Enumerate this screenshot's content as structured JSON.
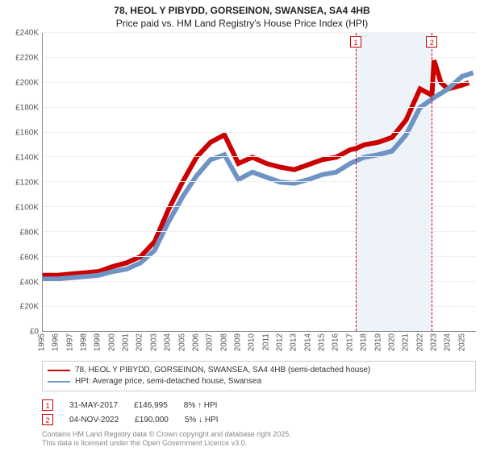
{
  "title": {
    "line1": "78, HEOL Y PIBYDD, GORSEINON, SWANSEA, SA4 4HB",
    "line2": "Price paid vs. HM Land Registry's House Price Index (HPI)"
  },
  "chart": {
    "type": "line",
    "background_color": "#ffffff",
    "grid_color": "#f0f0f0",
    "axis_color": "#888888",
    "marker_band_color": "#eef3fa",
    "ylim": [
      0,
      240000
    ],
    "ytick_step": 20000,
    "yticks_labels": [
      "£0",
      "£20K",
      "£40K",
      "£60K",
      "£80K",
      "£100K",
      "£120K",
      "£140K",
      "£160K",
      "£180K",
      "£200K",
      "£220K",
      "£240K"
    ],
    "xlim": [
      1995,
      2026
    ],
    "xticks": [
      1995,
      1996,
      1997,
      1998,
      1999,
      2000,
      2001,
      2002,
      2003,
      2004,
      2005,
      2006,
      2007,
      2008,
      2009,
      2010,
      2011,
      2012,
      2013,
      2014,
      2015,
      2016,
      2017,
      2018,
      2019,
      2020,
      2021,
      2022,
      2023,
      2024,
      2025
    ],
    "label_fontsize": 10,
    "series": [
      {
        "id": "price_paid",
        "label": "78, HEOL Y PIBYDD, GORSEINON, SWANSEA, SA4 4HB (semi-detached house)",
        "color": "#cc0000",
        "line_width": 2,
        "data": [
          [
            1995,
            45000
          ],
          [
            1996,
            45000
          ],
          [
            1997,
            46000
          ],
          [
            1998,
            47000
          ],
          [
            1999,
            48000
          ],
          [
            2000,
            52000
          ],
          [
            2001,
            55000
          ],
          [
            2002,
            60000
          ],
          [
            2003,
            72000
          ],
          [
            2004,
            98000
          ],
          [
            2005,
            120000
          ],
          [
            2006,
            140000
          ],
          [
            2007,
            152000
          ],
          [
            2008,
            158000
          ],
          [
            2009,
            135000
          ],
          [
            2010,
            140000
          ],
          [
            2011,
            135000
          ],
          [
            2012,
            132000
          ],
          [
            2013,
            130000
          ],
          [
            2014,
            134000
          ],
          [
            2015,
            138000
          ],
          [
            2016,
            140000
          ],
          [
            2017,
            146000
          ],
          [
            2017.4,
            146995
          ],
          [
            2018,
            150000
          ],
          [
            2019,
            152000
          ],
          [
            2020,
            156000
          ],
          [
            2021,
            170000
          ],
          [
            2022,
            195000
          ],
          [
            2022.85,
            190000
          ],
          [
            2023,
            218000
          ],
          [
            2023.5,
            200000
          ],
          [
            2024,
            195000
          ],
          [
            2025,
            198000
          ],
          [
            2025.5,
            200000
          ]
        ]
      },
      {
        "id": "hpi",
        "label": "HPI: Average price, semi-detached house, Swansea",
        "color": "#6f94c4",
        "line_width": 2,
        "data": [
          [
            1995,
            42000
          ],
          [
            1996,
            42000
          ],
          [
            1997,
            43000
          ],
          [
            1998,
            44000
          ],
          [
            1999,
            45000
          ],
          [
            2000,
            48000
          ],
          [
            2001,
            50000
          ],
          [
            2002,
            55000
          ],
          [
            2003,
            65000
          ],
          [
            2004,
            88000
          ],
          [
            2005,
            108000
          ],
          [
            2006,
            125000
          ],
          [
            2007,
            138000
          ],
          [
            2008,
            142000
          ],
          [
            2009,
            122000
          ],
          [
            2010,
            128000
          ],
          [
            2011,
            124000
          ],
          [
            2012,
            120000
          ],
          [
            2013,
            119000
          ],
          [
            2014,
            122000
          ],
          [
            2015,
            126000
          ],
          [
            2016,
            128000
          ],
          [
            2017,
            135000
          ],
          [
            2018,
            140000
          ],
          [
            2019,
            142000
          ],
          [
            2020,
            145000
          ],
          [
            2021,
            158000
          ],
          [
            2022,
            180000
          ],
          [
            2023,
            188000
          ],
          [
            2024,
            195000
          ],
          [
            2025,
            205000
          ],
          [
            2025.8,
            208000
          ]
        ]
      }
    ],
    "markers": [
      {
        "n": 1,
        "x": 2017.4,
        "color": "#cc0000"
      },
      {
        "n": 2,
        "x": 2022.85,
        "color": "#cc0000"
      }
    ],
    "marker_band": [
      2017.4,
      2022.85
    ]
  },
  "legend": {
    "border_color": "#cccccc"
  },
  "sales": [
    {
      "n": 1,
      "date": "31-MAY-2017",
      "price": "£146,995",
      "delta": "8% ↑ HPI",
      "color": "#cc0000"
    },
    {
      "n": 2,
      "date": "04-NOV-2022",
      "price": "£190,000",
      "delta": "5% ↓ HPI",
      "color": "#cc0000"
    }
  ],
  "footer": {
    "line1": "Contains HM Land Registry data © Crown copyright and database right 2025.",
    "line2": "This data is licensed under the Open Government Licence v3.0."
  }
}
